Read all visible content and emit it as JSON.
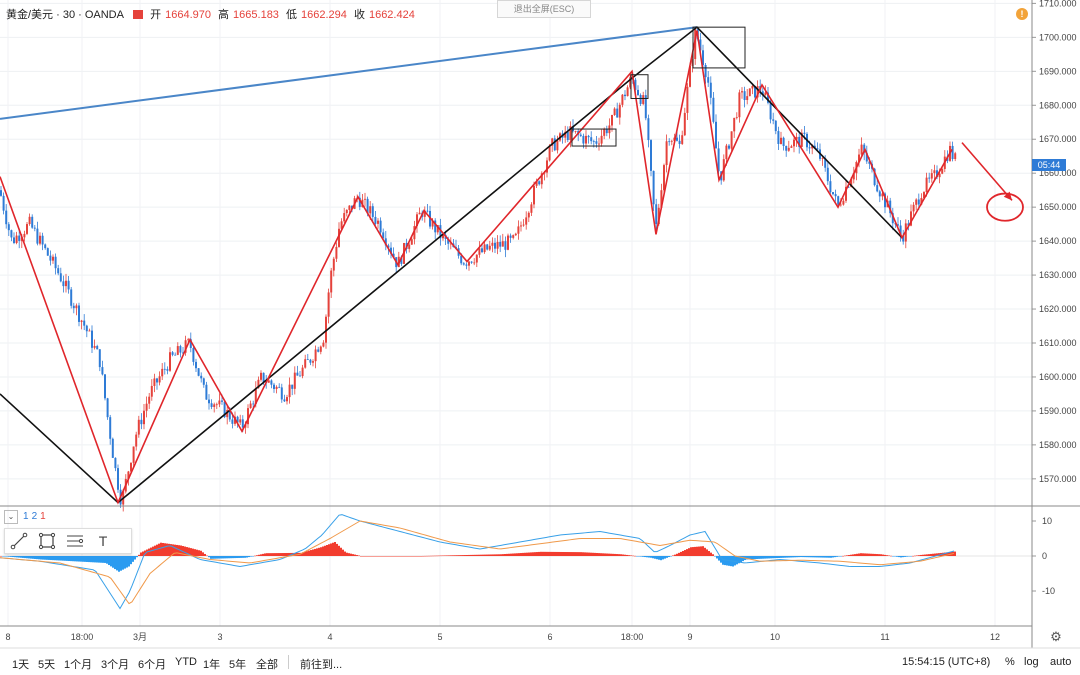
{
  "header": {
    "symbol": "黄金/美元 · 30 · OANDA",
    "open_label": "开",
    "open": "1664.970",
    "high_label": "高",
    "high": "1665.183",
    "low_label": "低",
    "low": "1662.294",
    "close_label": "收",
    "close": "1662.424"
  },
  "exit_fullscreen": "退出全屏(ESC)",
  "alert_icon": "!",
  "price_tag": "05:44",
  "toolbar": {
    "collapse_icon": "chevron-down-icon",
    "labels": [
      "1",
      "2",
      "1"
    ],
    "tools": [
      "line-tool-icon",
      "rectangle-tool-icon",
      "fib-tool-icon",
      "text-tool-icon"
    ],
    "text_tool_glyph": "T"
  },
  "bottom_bar": {
    "ranges": [
      "1天",
      "5天",
      "1个月",
      "3个月",
      "6个月",
      "YTD",
      "1年",
      "5年",
      "全部"
    ],
    "goto": "前往到...",
    "time": "15:54:15 (UTC+8)",
    "percent": "%",
    "log": "log",
    "auto": "auto"
  },
  "colors": {
    "up": "#e5423b",
    "down": "#2e7bd6",
    "zigzag": "#e0262b",
    "trend": "#111111",
    "channel": "#4a86c8",
    "macd_pos": "#f23c2e",
    "macd_neg": "#2b9bf0",
    "dif": "#38a0e8",
    "dea": "#f0994a"
  },
  "chart_data": {
    "type": "candlestick",
    "y_axis_ticks": [
      1570,
      1580,
      1590,
      1600,
      1610,
      1620,
      1630,
      1640,
      1650,
      1660,
      1670,
      1680,
      1690,
      1700,
      1710
    ],
    "ylim": [
      1562,
      1711
    ],
    "x_tick_labels": [
      "8",
      "18:00",
      "3月",
      "3",
      "4",
      "5",
      "6",
      "18:00",
      "9",
      "10",
      "11",
      "12"
    ],
    "current_price": 1662.424,
    "price_anchors": [
      [
        0,
        1655
      ],
      [
        12,
        1640
      ],
      [
        30,
        1645
      ],
      [
        60,
        1630
      ],
      [
        85,
        1615
      ],
      [
        100,
        1605
      ],
      [
        108,
        1588
      ],
      [
        116,
        1572
      ],
      [
        122,
        1563
      ],
      [
        135,
        1582
      ],
      [
        150,
        1595
      ],
      [
        170,
        1605
      ],
      [
        190,
        1610
      ],
      [
        205,
        1595
      ],
      [
        225,
        1590
      ],
      [
        242,
        1585
      ],
      [
        262,
        1600
      ],
      [
        285,
        1595
      ],
      [
        310,
        1605
      ],
      [
        324,
        1612
      ],
      [
        330,
        1628
      ],
      [
        340,
        1645
      ],
      [
        358,
        1653
      ],
      [
        380,
        1645
      ],
      [
        398,
        1633
      ],
      [
        422,
        1649
      ],
      [
        445,
        1640
      ],
      [
        465,
        1634
      ],
      [
        490,
        1638
      ],
      [
        515,
        1640
      ],
      [
        535,
        1655
      ],
      [
        552,
        1668
      ],
      [
        570,
        1672
      ],
      [
        595,
        1669
      ],
      [
        612,
        1675
      ],
      [
        632,
        1688
      ],
      [
        645,
        1680
      ],
      [
        656,
        1643
      ],
      [
        668,
        1672
      ],
      [
        680,
        1668
      ],
      [
        696,
        1702
      ],
      [
        708,
        1688
      ],
      [
        720,
        1658
      ],
      [
        740,
        1682
      ],
      [
        762,
        1685
      ],
      [
        782,
        1668
      ],
      [
        805,
        1670
      ],
      [
        820,
        1665
      ],
      [
        838,
        1650
      ],
      [
        862,
        1667
      ],
      [
        880,
        1655
      ],
      [
        902,
        1641
      ],
      [
        922,
        1655
      ],
      [
        935,
        1659
      ],
      [
        950,
        1667
      ],
      [
        955,
        1664
      ]
    ],
    "zigzag_red": [
      [
        0,
        1659
      ],
      [
        118,
        1563
      ],
      [
        190,
        1611
      ],
      [
        242,
        1584
      ],
      [
        358,
        1653
      ],
      [
        398,
        1633
      ],
      [
        424,
        1649
      ],
      [
        467,
        1634
      ],
      [
        632,
        1690
      ],
      [
        656,
        1642
      ],
      [
        697,
        1702
      ],
      [
        719,
        1658
      ],
      [
        762,
        1686
      ],
      [
        838,
        1650
      ],
      [
        865,
        1667
      ],
      [
        902,
        1641
      ],
      [
        952,
        1667
      ]
    ],
    "zigzag_black": [
      [
        0,
        1595
      ],
      [
        118,
        1563
      ],
      [
        632,
        1688
      ],
      [
        697,
        1703
      ],
      [
        902,
        1641
      ]
    ],
    "channel_line": [
      [
        0,
        1676
      ],
      [
        697,
        1703
      ]
    ],
    "boxes": [
      {
        "x0": 572,
        "x1": 616,
        "y0": 1673,
        "y1": 1668
      },
      {
        "x0": 631,
        "x1": 648,
        "y0": 1689,
        "y1": 1682
      },
      {
        "x0": 693,
        "x1": 745,
        "y0": 1703,
        "y1": 1691
      }
    ],
    "projection_arrow": {
      "from": [
        962,
        1669
      ],
      "to": [
        1012,
        1652
      ]
    },
    "target_ellipse": {
      "cx": 1005,
      "cy": 1650,
      "rx": 18,
      "ry": 4
    },
    "macd": {
      "ylim": [
        -20,
        14
      ],
      "ticks": [
        10,
        0,
        -10
      ],
      "hist_anchors": [
        [
          0,
          0
        ],
        [
          40,
          -1
        ],
        [
          105,
          -2
        ],
        [
          118,
          -4.5
        ],
        [
          128,
          -3
        ],
        [
          140,
          1
        ],
        [
          160,
          3.8
        ],
        [
          180,
          3
        ],
        [
          200,
          1.5
        ],
        [
          210,
          -0.8
        ],
        [
          245,
          -0.5
        ],
        [
          265,
          0.8
        ],
        [
          300,
          0.9
        ],
        [
          320,
          2.5
        ],
        [
          334,
          4
        ],
        [
          345,
          1
        ],
        [
          360,
          0
        ],
        [
          420,
          0
        ],
        [
          500,
          0.5
        ],
        [
          540,
          1.2
        ],
        [
          580,
          1.1
        ],
        [
          620,
          0.5
        ],
        [
          650,
          -0.5
        ],
        [
          660,
          -1.2
        ],
        [
          675,
          0.5
        ],
        [
          690,
          2.5
        ],
        [
          702,
          2.8
        ],
        [
          712,
          0.5
        ],
        [
          722,
          -2.5
        ],
        [
          732,
          -3
        ],
        [
          745,
          -1
        ],
        [
          775,
          -0.6
        ],
        [
          800,
          -0.3
        ],
        [
          830,
          -0.5
        ],
        [
          860,
          0.8
        ],
        [
          880,
          0.5
        ],
        [
          900,
          -0.4
        ],
        [
          920,
          0.3
        ],
        [
          955,
          1.3
        ]
      ],
      "dif_anchors": [
        [
          0,
          -0.5
        ],
        [
          40,
          -1.5
        ],
        [
          95,
          -4
        ],
        [
          120,
          -15
        ],
        [
          130,
          -10
        ],
        [
          145,
          1
        ],
        [
          170,
          3
        ],
        [
          200,
          -1
        ],
        [
          240,
          -3
        ],
        [
          280,
          -1
        ],
        [
          305,
          2
        ],
        [
          322,
          6
        ],
        [
          340,
          12
        ],
        [
          360,
          10
        ],
        [
          400,
          7
        ],
        [
          440,
          4
        ],
        [
          480,
          2
        ],
        [
          520,
          4
        ],
        [
          560,
          6
        ],
        [
          600,
          7
        ],
        [
          640,
          5
        ],
        [
          655,
          1
        ],
        [
          670,
          3
        ],
        [
          690,
          6
        ],
        [
          705,
          7
        ],
        [
          722,
          -1
        ],
        [
          745,
          -2
        ],
        [
          780,
          -1
        ],
        [
          820,
          -2
        ],
        [
          850,
          -3
        ],
        [
          880,
          -3
        ],
        [
          910,
          -2
        ],
        [
          955,
          1.5
        ]
      ],
      "dea_anchors": [
        [
          0,
          -0.5
        ],
        [
          60,
          -2
        ],
        [
          110,
          -6
        ],
        [
          130,
          -14
        ],
        [
          150,
          -5
        ],
        [
          175,
          1
        ],
        [
          210,
          -1
        ],
        [
          250,
          -2
        ],
        [
          300,
          0.5
        ],
        [
          330,
          5
        ],
        [
          360,
          10
        ],
        [
          400,
          8
        ],
        [
          450,
          4
        ],
        [
          500,
          2
        ],
        [
          540,
          3.5
        ],
        [
          580,
          5
        ],
        [
          620,
          5
        ],
        [
          660,
          3
        ],
        [
          690,
          4.5
        ],
        [
          715,
          4
        ],
        [
          735,
          0
        ],
        [
          760,
          -1.5
        ],
        [
          800,
          -1.2
        ],
        [
          840,
          -1.5
        ],
        [
          880,
          -2.5
        ],
        [
          920,
          -1.5
        ],
        [
          955,
          0.8
        ]
      ]
    }
  }
}
